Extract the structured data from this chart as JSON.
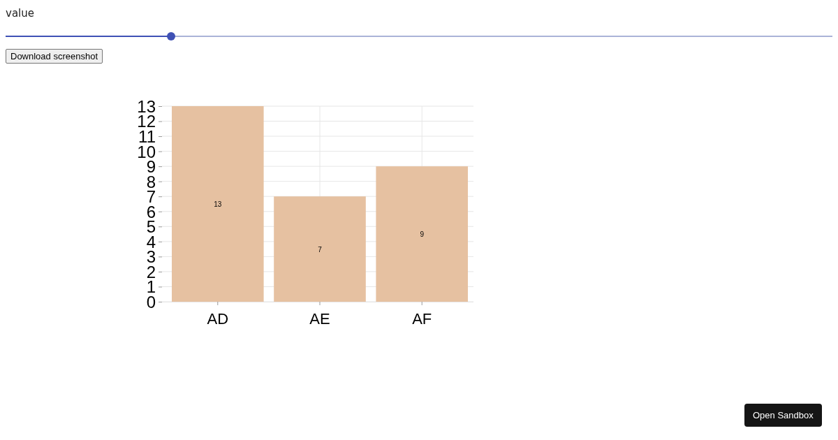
{
  "chart_data": {
    "type": "bar",
    "categories": [
      "AD",
      "AE",
      "AF"
    ],
    "values": [
      13,
      7,
      9
    ],
    "color": "#e6c1a1",
    "ylim": [
      0,
      13
    ],
    "yticks": [
      0,
      1,
      2,
      3,
      4,
      5,
      6,
      7,
      8,
      9,
      10,
      11,
      12,
      13
    ],
    "grid": true,
    "data_labels": true,
    "annotations": [
      "value",
      "Download screenshot",
      "Open Sandbox"
    ]
  }
}
